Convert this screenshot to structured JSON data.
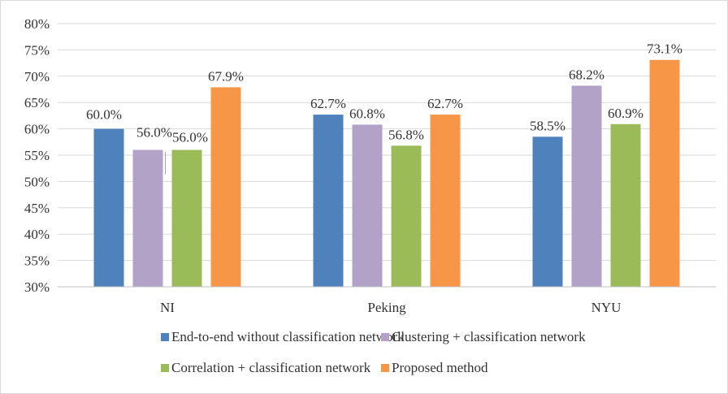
{
  "chart_data": {
    "type": "bar",
    "title": "",
    "xlabel": "",
    "ylabel": "",
    "categories": [
      "NI",
      "Peking",
      "NYU"
    ],
    "series": [
      {
        "name": "End-to-end without classification network",
        "color": "#4f81bd",
        "values": [
          60.0,
          62.7,
          58.5
        ],
        "labels": [
          "60.0%",
          "62.7%",
          "58.5%"
        ]
      },
      {
        "name": "Clustering + classification network",
        "color": "#b2a2c7",
        "values": [
          56.0,
          60.8,
          68.2
        ],
        "labels": [
          "56.0%",
          "60.8%",
          "68.2%"
        ]
      },
      {
        "name": "Correlation + classification network",
        "color": "#9bbb59",
        "values": [
          56.0,
          56.8,
          60.9
        ],
        "labels": [
          "56.0%",
          "56.8%",
          "60.9%"
        ]
      },
      {
        "name": "Proposed method",
        "color": "#f79646",
        "values": [
          67.9,
          62.7,
          73.1
        ],
        "labels": [
          "67.9%",
          "62.7%",
          "73.1%"
        ]
      }
    ],
    "ylim": [
      30,
      80
    ],
    "yticks": [
      30,
      35,
      40,
      45,
      50,
      55,
      60,
      65,
      70,
      75,
      80
    ],
    "ytick_labels": [
      "30%",
      "35%",
      "40%",
      "45%",
      "50%",
      "55%",
      "60%",
      "65%",
      "70%",
      "75%",
      "80%"
    ],
    "grid": true,
    "legend_position": "bottom"
  }
}
